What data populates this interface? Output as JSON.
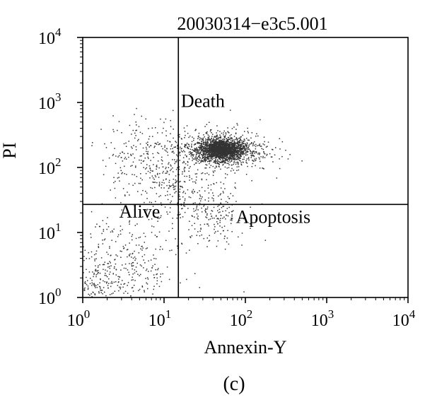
{
  "chart_data": {
    "type": "scatter",
    "title": "20030314−e3c5.001",
    "xlabel": "Annexin-Y",
    "ylabel": "PI",
    "panel_label": "(c)",
    "xscale": "log",
    "yscale": "log",
    "xlim": [
      1,
      10000
    ],
    "ylim": [
      1,
      10000
    ],
    "x_ticks": [
      {
        "value": 1,
        "base": "10",
        "exp": "0"
      },
      {
        "value": 10,
        "base": "10",
        "exp": "1"
      },
      {
        "value": 100,
        "base": "10",
        "exp": "2"
      },
      {
        "value": 1000,
        "base": "10",
        "exp": "3"
      },
      {
        "value": 10000,
        "base": "10",
        "exp": "4"
      }
    ],
    "y_ticks": [
      {
        "value": 1,
        "base": "10",
        "exp": "0"
      },
      {
        "value": 10,
        "base": "10",
        "exp": "1"
      },
      {
        "value": 100,
        "base": "10",
        "exp": "2"
      },
      {
        "value": 1000,
        "base": "10",
        "exp": "3"
      },
      {
        "value": 10000,
        "base": "10",
        "exp": "4"
      }
    ],
    "gates": {
      "x": 15,
      "y": 27
    },
    "grid": false,
    "dot_color": "#333333",
    "quadrant_labels": [
      {
        "text": "Death",
        "x": 30,
        "y": 850
      },
      {
        "text": "Alive",
        "x": 5,
        "y": 17
      },
      {
        "text": "Apoptosis",
        "x": 220,
        "y": 14
      }
    ],
    "clusters": [
      {
        "name": "main",
        "cx": 50,
        "cy": 190,
        "sx": 0.14,
        "sy": 0.08,
        "n": 1800
      },
      {
        "name": "halo",
        "cx": 50,
        "cy": 190,
        "sx": 0.3,
        "sy": 0.17,
        "n": 650
      },
      {
        "name": "upper-left",
        "cx": 6,
        "cy": 150,
        "sx": 0.28,
        "sy": 0.3,
        "n": 260
      },
      {
        "name": "near-gate",
        "cx": 14,
        "cy": 40,
        "sx": 0.18,
        "sy": 0.28,
        "n": 160
      },
      {
        "name": "apoptosis",
        "cx": 40,
        "cy": 20,
        "sx": 0.2,
        "sy": 0.24,
        "n": 200
      },
      {
        "name": "alive",
        "cx": 3,
        "cy": 3,
        "sx": 0.35,
        "sy": 0.42,
        "n": 380
      },
      {
        "name": "origin",
        "cx": 1.3,
        "cy": 1.3,
        "sx": 0.15,
        "sy": 0.2,
        "n": 120
      }
    ]
  }
}
